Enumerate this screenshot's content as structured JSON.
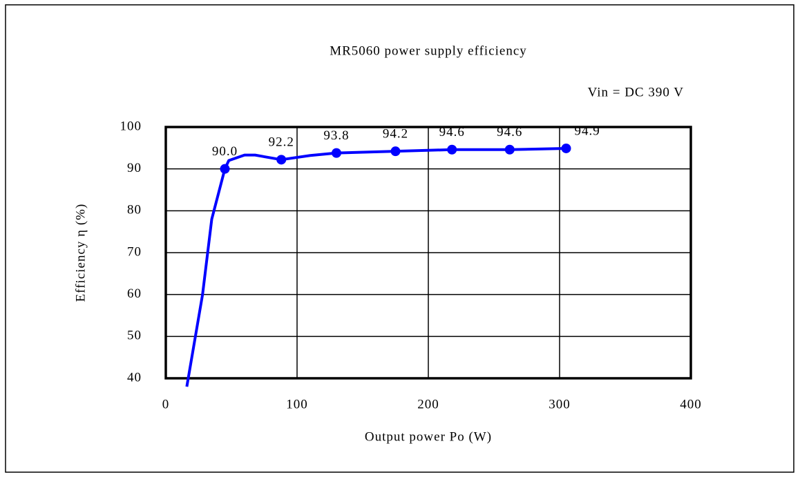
{
  "chart_data": {
    "type": "line",
    "title": "MR5060 power supply efficiency",
    "annotation": "Vin = DC 390 V",
    "x_label": "Output power Po (W)",
    "y_label": "Efficiency η (%)",
    "xlim": [
      0,
      400
    ],
    "xticks": [
      0,
      100,
      200,
      300,
      400
    ],
    "ylim": [
      40,
      100
    ],
    "yticks": [
      40,
      50,
      60,
      70,
      80,
      90,
      100
    ],
    "grid": true,
    "series": [
      {
        "color": "#0000ff",
        "x": [
          16,
          28,
          35,
          45,
          48,
          60,
          68,
          88,
          110,
          130,
          175,
          218,
          262,
          305
        ],
        "values": [
          38,
          60,
          78,
          90,
          92,
          93.3,
          93.3,
          92.2,
          93.2,
          93.8,
          94.2,
          94.6,
          94.6,
          94.9
        ]
      },
      {
        "color": "#0000ff",
        "x": [
          45,
          88,
          130,
          175,
          218,
          262,
          305
        ],
        "values": [
          90,
          92.2,
          93.8,
          94.2,
          94.6,
          94.6,
          94.9
        ],
        "value_labels": [
          "90.0",
          "92.2",
          "93.8",
          "94.2",
          "94.6",
          "94.6",
          "94.9"
        ]
      }
    ]
  }
}
